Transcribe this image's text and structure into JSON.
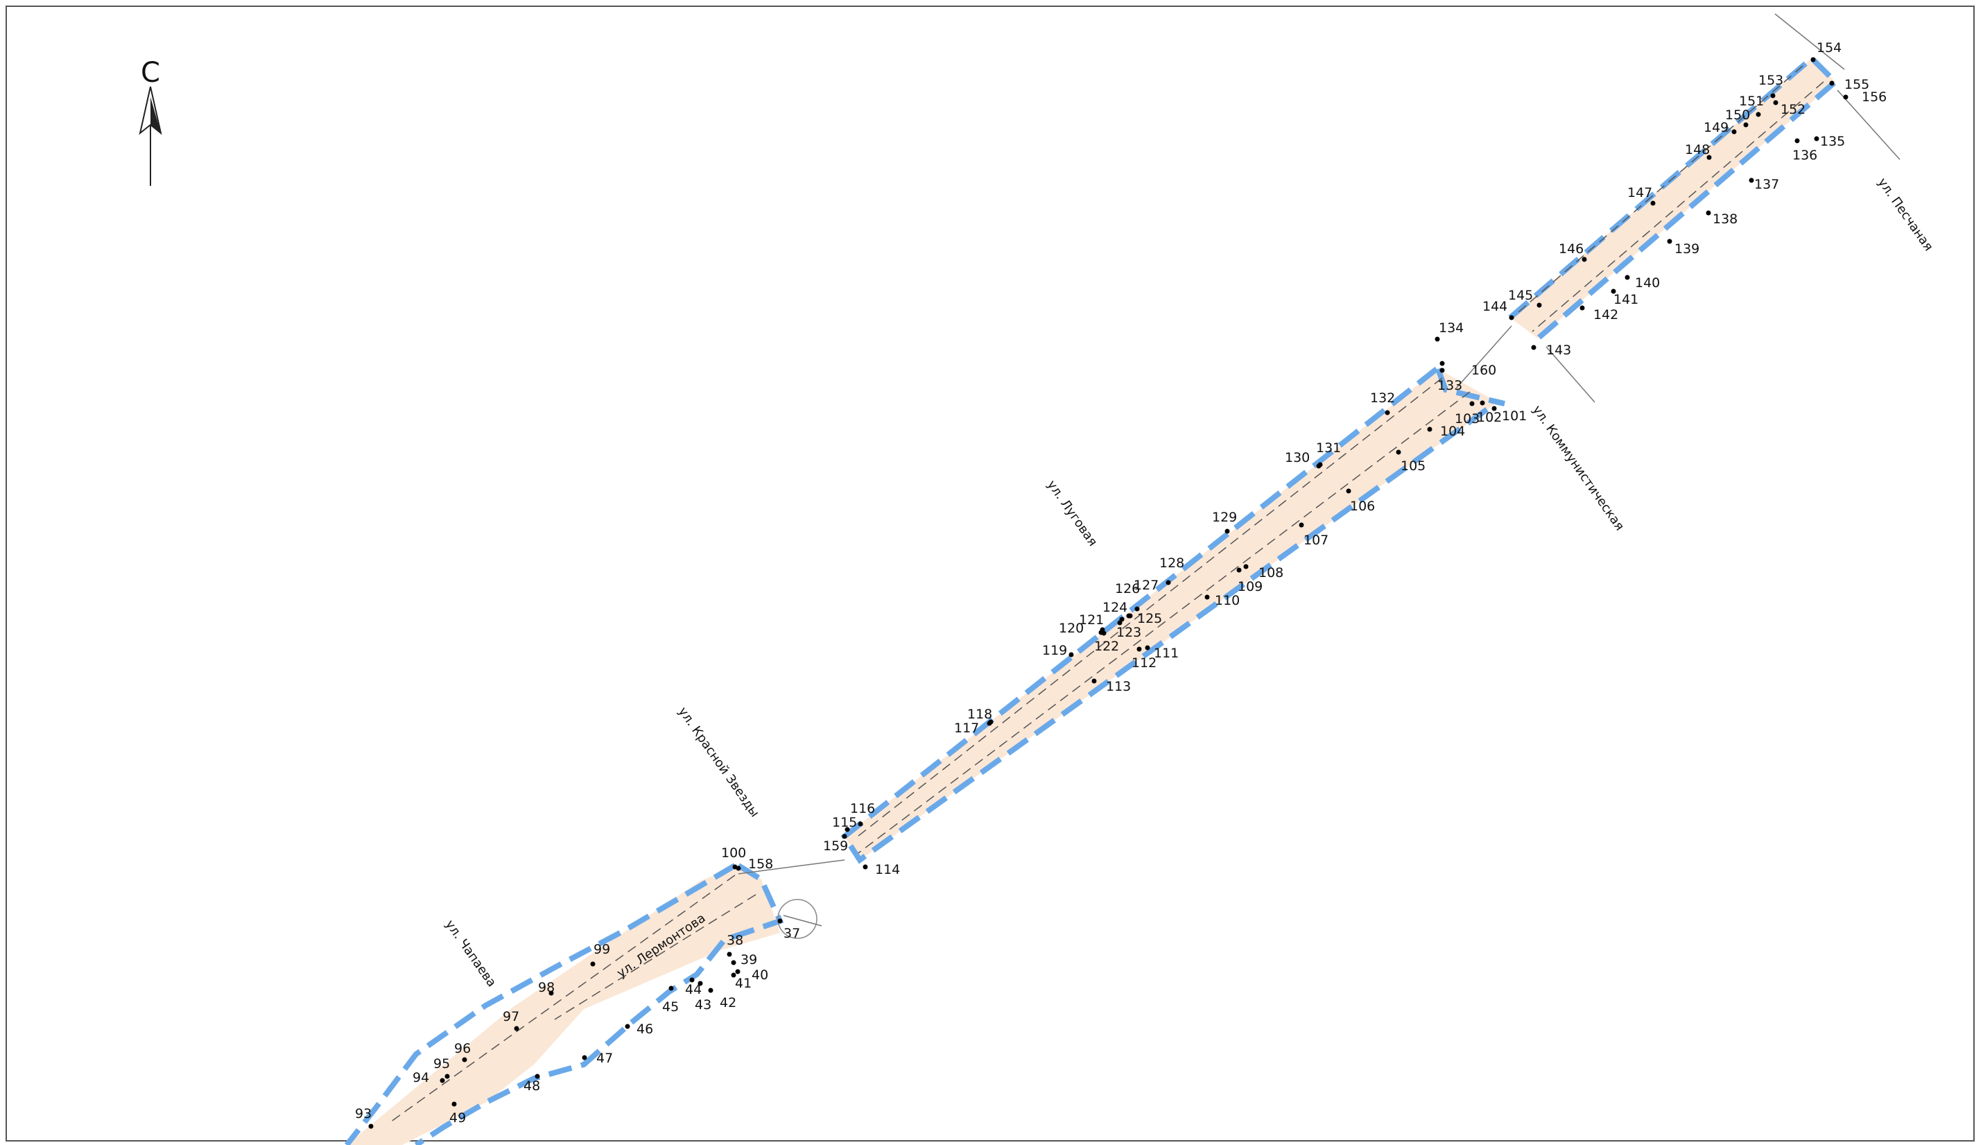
{
  "north_label": "С",
  "streets": [
    {
      "id": "peschanaya",
      "text": "ул. Песчаная"
    },
    {
      "id": "kommunisticheskaya",
      "text": "ул. Коммунистическая"
    },
    {
      "id": "lugovaya",
      "text": "ул. Луговая"
    },
    {
      "id": "krasnoy-zvezdy",
      "text": "ул. Красной Звезды"
    },
    {
      "id": "lermontova",
      "text": "ул. Лермонтова"
    },
    {
      "id": "chapaeva",
      "text": "ул. Чапаева"
    }
  ],
  "points": [
    {
      "n": "154"
    },
    {
      "n": "155"
    },
    {
      "n": "156"
    },
    {
      "n": "153"
    },
    {
      "n": "152"
    },
    {
      "n": "151"
    },
    {
      "n": "150"
    },
    {
      "n": "149"
    },
    {
      "n": "148"
    },
    {
      "n": "135"
    },
    {
      "n": "136"
    },
    {
      "n": "137"
    },
    {
      "n": "147"
    },
    {
      "n": "138"
    },
    {
      "n": "146"
    },
    {
      "n": "139"
    },
    {
      "n": "140"
    },
    {
      "n": "141"
    },
    {
      "n": "145"
    },
    {
      "n": "144"
    },
    {
      "n": "142"
    },
    {
      "n": "143"
    },
    {
      "n": "134"
    },
    {
      "n": "160"
    },
    {
      "n": "133"
    },
    {
      "n": "132"
    },
    {
      "n": "103"
    },
    {
      "n": "102"
    },
    {
      "n": "101"
    },
    {
      "n": "104"
    },
    {
      "n": "131"
    },
    {
      "n": "130"
    },
    {
      "n": "105"
    },
    {
      "n": "106"
    },
    {
      "n": "129"
    },
    {
      "n": "107"
    },
    {
      "n": "128"
    },
    {
      "n": "108"
    },
    {
      "n": "127"
    },
    {
      "n": "126"
    },
    {
      "n": "109"
    },
    {
      "n": "110"
    },
    {
      "n": "124"
    },
    {
      "n": "125"
    },
    {
      "n": "121"
    },
    {
      "n": "123"
    },
    {
      "n": "120"
    },
    {
      "n": "122"
    },
    {
      "n": "111"
    },
    {
      "n": "112"
    },
    {
      "n": "119"
    },
    {
      "n": "113"
    },
    {
      "n": "118"
    },
    {
      "n": "117"
    },
    {
      "n": "116"
    },
    {
      "n": "115"
    },
    {
      "n": "159"
    },
    {
      "n": "114"
    },
    {
      "n": "100"
    },
    {
      "n": "158"
    },
    {
      "n": "37"
    },
    {
      "n": "38"
    },
    {
      "n": "39"
    },
    {
      "n": "40"
    },
    {
      "n": "41"
    },
    {
      "n": "42"
    },
    {
      "n": "43"
    },
    {
      "n": "44"
    },
    {
      "n": "45"
    },
    {
      "n": "46"
    },
    {
      "n": "47"
    },
    {
      "n": "48"
    },
    {
      "n": "49"
    },
    {
      "n": "99"
    },
    {
      "n": "98"
    },
    {
      "n": "97"
    },
    {
      "n": "96"
    },
    {
      "n": "95"
    },
    {
      "n": "94"
    },
    {
      "n": "93"
    }
  ],
  "colors": {
    "road_fill": "#fbe7d6",
    "boundary_dash": "#6aa9e9",
    "line": "#333333"
  }
}
